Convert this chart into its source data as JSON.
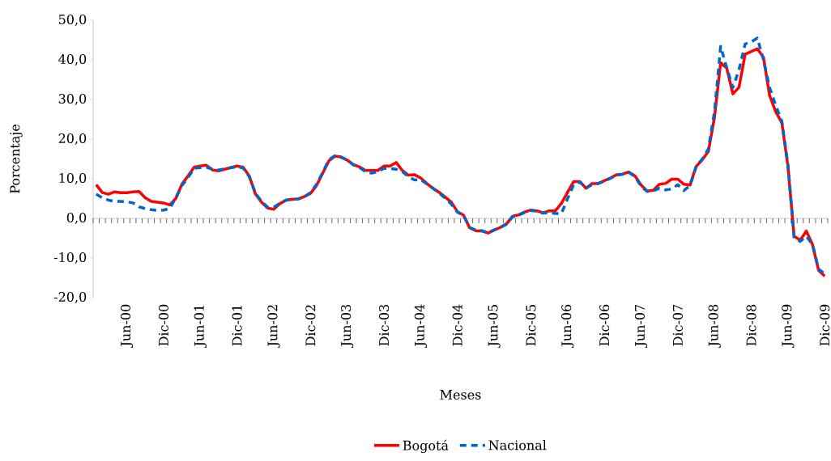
{
  "chart_data": {
    "type": "line",
    "xlabel": "Meses",
    "ylabel": "Porcentaje",
    "legend": "bottom",
    "ylim": [
      -20,
      50
    ],
    "yticks": [
      {
        "value": -20,
        "label": "-20,0"
      },
      {
        "value": -10,
        "label": "-10,0"
      },
      {
        "value": 0,
        "label": "0,0"
      },
      {
        "value": 10,
        "label": "10,0"
      },
      {
        "value": 20,
        "label": "20,0"
      },
      {
        "value": 30,
        "label": "30,0"
      },
      {
        "value": 40,
        "label": "40,0"
      },
      {
        "value": 50,
        "label": "50,0"
      }
    ],
    "categories": [
      null,
      null,
      null,
      null,
      null,
      "Jun-00",
      null,
      null,
      null,
      null,
      null,
      "Dic-00",
      null,
      null,
      null,
      null,
      null,
      "Jun-01",
      null,
      null,
      null,
      null,
      null,
      "Dic-01",
      null,
      null,
      null,
      null,
      null,
      "Jun-02",
      null,
      null,
      null,
      null,
      null,
      "Dic-02",
      null,
      null,
      null,
      null,
      null,
      "Jun-03",
      null,
      null,
      null,
      null,
      null,
      "Dic-03",
      null,
      null,
      null,
      null,
      null,
      "Jun-04",
      null,
      null,
      null,
      null,
      null,
      "Dic-04",
      null,
      null,
      null,
      null,
      null,
      "Jun-05",
      null,
      null,
      null,
      null,
      null,
      "Dic-05",
      null,
      null,
      null,
      null,
      null,
      "Jun-06",
      null,
      null,
      null,
      null,
      null,
      "Dic-06",
      null,
      null,
      null,
      null,
      null,
      "Jun-07",
      null,
      null,
      null,
      null,
      null,
      "Dic-07",
      null,
      null,
      null,
      null,
      null,
      "Jun-08",
      null,
      null,
      null,
      null,
      null,
      "Dic-08",
      null,
      null,
      null,
      null,
      null,
      "Jun-09",
      null,
      null,
      null,
      null,
      null,
      "Dic-09"
    ],
    "series": [
      {
        "name": "Bogotá",
        "color": "#ff0000",
        "line_style": "solid",
        "values": [
          8.5,
          6.5,
          6.1,
          6.7,
          6.5,
          6.5,
          6.7,
          6.8,
          5.2,
          4.3,
          4.1,
          3.9,
          3.4,
          5.0,
          8.6,
          10.7,
          12.9,
          13.2,
          13.4,
          12.2,
          12.0,
          12.4,
          12.8,
          13.2,
          12.9,
          10.7,
          6.2,
          4.1,
          2.6,
          2.3,
          3.7,
          4.6,
          4.8,
          4.9,
          5.5,
          6.3,
          8.3,
          11.4,
          14.5,
          15.7,
          15.5,
          14.7,
          13.6,
          13.0,
          12.1,
          12.1,
          12.1,
          13.2,
          13.2,
          14.1,
          12.1,
          10.9,
          11.0,
          10.2,
          8.8,
          7.6,
          6.6,
          5.4,
          4.1,
          1.7,
          0.8,
          -2.4,
          -3.1,
          -3.2,
          -3.7,
          -3.0,
          -2.3,
          -1.4,
          0.5,
          0.9,
          1.6,
          2.1,
          1.9,
          1.4,
          1.9,
          1.9,
          3.8,
          6.6,
          9.3,
          9.3,
          7.6,
          8.8,
          8.8,
          9.5,
          10.2,
          11.0,
          11.2,
          11.7,
          10.7,
          8.4,
          6.9,
          7.1,
          8.6,
          8.8,
          9.9,
          9.9,
          8.6,
          8.4,
          13.1,
          14.8,
          16.9,
          25.5,
          39.3,
          37.9,
          31.4,
          33.1,
          41.4,
          42.1,
          42.8,
          40.6,
          31.0,
          26.9,
          24.1,
          13.1,
          -4.5,
          -5.5,
          -3.2,
          -6.6,
          -13.1,
          -14.6
        ]
      },
      {
        "name": "Nacional",
        "color": "#0066cc",
        "line_style": "dashed",
        "values": [
          6.1,
          5.2,
          4.6,
          4.3,
          4.3,
          4.2,
          3.9,
          2.9,
          2.5,
          2.2,
          2.0,
          2.1,
          2.5,
          5.2,
          8.3,
          10.3,
          12.6,
          12.8,
          12.9,
          12.4,
          12.2,
          12.5,
          12.8,
          13.0,
          12.7,
          10.5,
          6.4,
          4.3,
          2.8,
          2.8,
          3.8,
          4.6,
          4.8,
          4.9,
          5.4,
          6.5,
          8.6,
          11.6,
          14.8,
          15.8,
          15.4,
          14.8,
          13.5,
          12.8,
          11.8,
          11.4,
          11.8,
          12.6,
          12.6,
          12.4,
          11.8,
          10.5,
          9.7,
          9.8,
          8.7,
          7.6,
          6.4,
          5.1,
          3.6,
          1.6,
          0.7,
          -2.3,
          -3.0,
          -3.1,
          -3.6,
          -2.9,
          -2.3,
          -1.5,
          0.4,
          0.8,
          1.5,
          2.0,
          1.8,
          1.3,
          1.5,
          1.2,
          1.2,
          5.0,
          8.5,
          9.2,
          7.6,
          8.5,
          8.8,
          9.4,
          10.1,
          10.9,
          11.1,
          11.6,
          10.6,
          8.1,
          6.8,
          7.0,
          7.6,
          7.2,
          7.4,
          8.5,
          7.0,
          8.3,
          13.0,
          15.0,
          17.5,
          27.0,
          43.4,
          38.0,
          33.0,
          37.5,
          44.0,
          44.5,
          45.5,
          40.0,
          33.0,
          28.5,
          24.5,
          13.5,
          -4.8,
          -5.8,
          -4.5,
          -6.6,
          -12.8,
          -14.0
        ]
      }
    ]
  }
}
